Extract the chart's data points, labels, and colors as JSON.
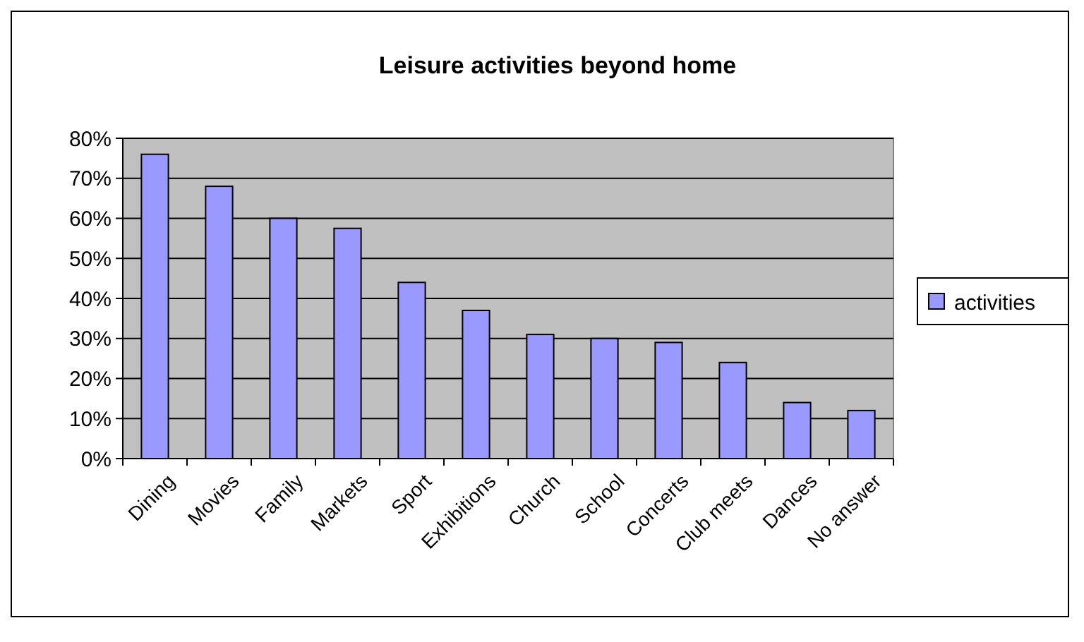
{
  "chart_data": {
    "type": "bar",
    "title": "Leisure activities beyond home",
    "categories": [
      "Dining",
      "Movies",
      "Family",
      "Markets",
      "Sport",
      "Exhibitions",
      "Church",
      "School",
      "Concerts",
      "Club meets",
      "Dances",
      "No answer"
    ],
    "series": [
      {
        "name": "activities",
        "color": "#9999ff",
        "values": [
          76,
          68,
          60,
          57.5,
          44,
          37,
          31,
          30,
          29,
          24,
          14,
          12
        ]
      }
    ],
    "ylim": [
      0,
      80
    ],
    "yticks": [
      {
        "value": 0,
        "label": "0%"
      },
      {
        "value": 10,
        "label": "10%"
      },
      {
        "value": 20,
        "label": "20%"
      },
      {
        "value": 30,
        "label": "30%"
      },
      {
        "value": 40,
        "label": "40%"
      },
      {
        "value": 50,
        "label": "50%"
      },
      {
        "value": 60,
        "label": "60%"
      },
      {
        "value": 70,
        "label": "70%"
      },
      {
        "value": 80,
        "label": "80%"
      }
    ],
    "grid": "y",
    "legend": "right"
  }
}
